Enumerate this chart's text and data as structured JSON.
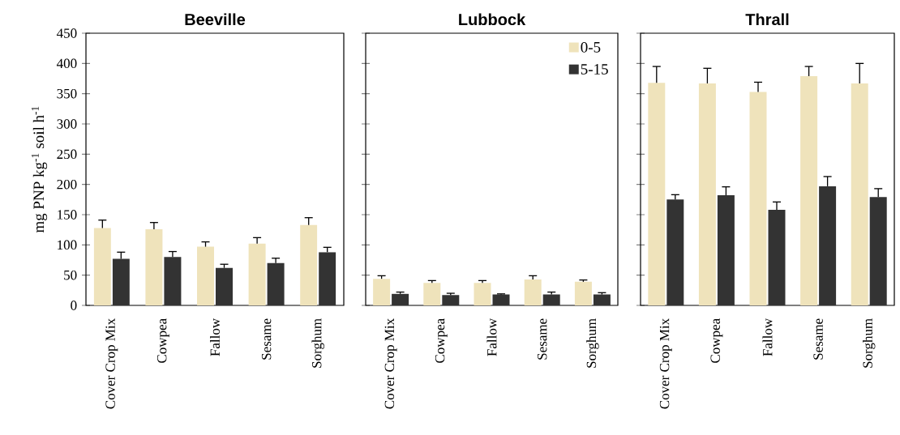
{
  "chart_data": [
    {
      "type": "bar",
      "title": "Beeville",
      "ylabel": "mg PNP kg$^{-1}$ soil h$^{-1}$",
      "categories": [
        "Cover Crop Mix",
        "Cowpea",
        "Fallow",
        "Sesame",
        "Sorghum"
      ],
      "ylim": [
        0,
        450
      ],
      "yticks": [
        0,
        50,
        100,
        150,
        200,
        250,
        300,
        350,
        400,
        450
      ],
      "series": [
        {
          "color": "#efe3bb",
          "values": [
            128,
            126,
            97,
            102,
            133
          ],
          "errors": [
            [
              128,
              141
            ],
            [
              126,
              137
            ],
            [
              97,
              105
            ],
            [
              102,
              112
            ],
            [
              133,
              145
            ]
          ]
        },
        {
          "color": "#333333",
          "values": [
            77,
            80,
            62,
            70,
            88
          ],
          "errors": [
            [
              77,
              88
            ],
            [
              80,
              89
            ],
            [
              62,
              68
            ],
            [
              70,
              78
            ],
            [
              88,
              96
            ]
          ]
        }
      ]
    },
    {
      "type": "bar",
      "title": "Lubbock",
      "categories": [
        "Cover Crop Mix",
        "Cowpea",
        "Fallow",
        "Sesame",
        "Sorghum"
      ],
      "ylim": [
        0,
        450
      ],
      "yticks": [
        0,
        50,
        100,
        150,
        200,
        250,
        300,
        350,
        400,
        450
      ],
      "tick_labels": "x",
      "legend": "top right",
      "series": [
        {
          "name": "0-5",
          "color": "#efe3bb",
          "values": [
            44,
            37,
            37,
            43,
            39
          ],
          "errors": [
            [
              44,
              49
            ],
            [
              37,
              41
            ],
            [
              37,
              41
            ],
            [
              43,
              49
            ],
            [
              39,
              42
            ]
          ]
        },
        {
          "name": "5-15",
          "color": "#333333",
          "values": [
            19,
            17,
            18,
            18,
            18
          ],
          "errors": [
            [
              19,
              22
            ],
            [
              17,
              20
            ],
            [
              18,
              19
            ],
            [
              18,
              22
            ],
            [
              18,
              21
            ]
          ]
        }
      ]
    },
    {
      "type": "bar",
      "title": "Thrall",
      "categories": [
        "Cover Crop Mix",
        "Cowpea",
        "Fallow",
        "Sesame",
        "Sorghum"
      ],
      "ylim": [
        0,
        450
      ],
      "yticks": [
        0,
        50,
        100,
        150,
        200,
        250,
        300,
        350,
        400,
        450
      ],
      "tick_labels": "x",
      "series": [
        {
          "color": "#efe3bb",
          "values": [
            368,
            367,
            353,
            379,
            367
          ],
          "errors": [
            [
              368,
              395
            ],
            [
              367,
              392
            ],
            [
              353,
              369
            ],
            [
              379,
              395
            ],
            [
              367,
              400
            ]
          ]
        },
        {
          "color": "#333333",
          "values": [
            175,
            182,
            158,
            197,
            179
          ],
          "errors": [
            [
              175,
              183
            ],
            [
              182,
              196
            ],
            [
              158,
              171
            ],
            [
              197,
              213
            ],
            [
              179,
              193
            ]
          ]
        }
      ]
    }
  ]
}
